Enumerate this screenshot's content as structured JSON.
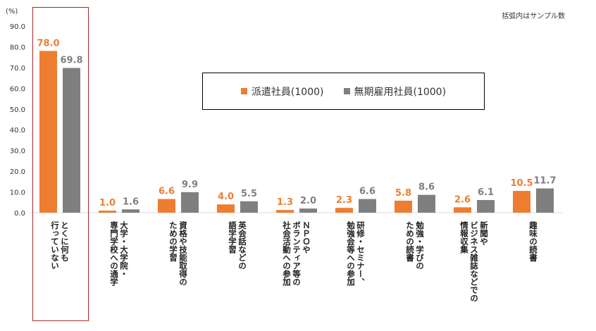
{
  "unit_label": "(%)",
  "note": "括弧内はサンプル数",
  "colors": {
    "series1": "#ed7d31",
    "series2": "#7f7f7f",
    "highlight": "#a52a2a",
    "axis": "#d9d9d9"
  },
  "chart_data": {
    "type": "bar",
    "ylim": [
      0,
      90
    ],
    "y_ticks": [
      "0.0",
      "10.0",
      "20.0",
      "30.0",
      "40.0",
      "50.0",
      "60.0",
      "70.0",
      "80.0",
      "90.0"
    ],
    "categories": [
      "とくに何も\n行っていない",
      "大学・大学院・\n専門学校への通学",
      "資格や技能取得の\nための学習",
      "英会話などの\n語学学習",
      "ＮＰＯや\nボランティア等の\n社会活動への参加",
      "研修・セミナー、\n勉強会等への参加",
      "勉強・学びの\nための読書",
      "新聞や\nビジネス雑誌などでの\n情報収集",
      "趣味の読書"
    ],
    "series": [
      {
        "name": "派遣社員(1000)",
        "values": [
          78.0,
          1.0,
          6.6,
          4.0,
          1.3,
          2.3,
          5.8,
          2.6,
          10.5
        ],
        "labels": [
          "78.0",
          "1.0",
          "6.6",
          "4.0",
          "1.3",
          "2.3",
          "5.8",
          "2.6",
          "10.5"
        ]
      },
      {
        "name": "無期雇用社員(1000)",
        "values": [
          69.8,
          1.6,
          9.9,
          5.5,
          2.0,
          6.6,
          8.6,
          6.1,
          11.7
        ],
        "labels": [
          "69.8",
          "1.6",
          "9.9",
          "5.5",
          "2.0",
          "6.6",
          "8.6",
          "6.1",
          "11.7"
        ]
      }
    ],
    "legend_position": "top-right",
    "highlight_category": 0
  }
}
